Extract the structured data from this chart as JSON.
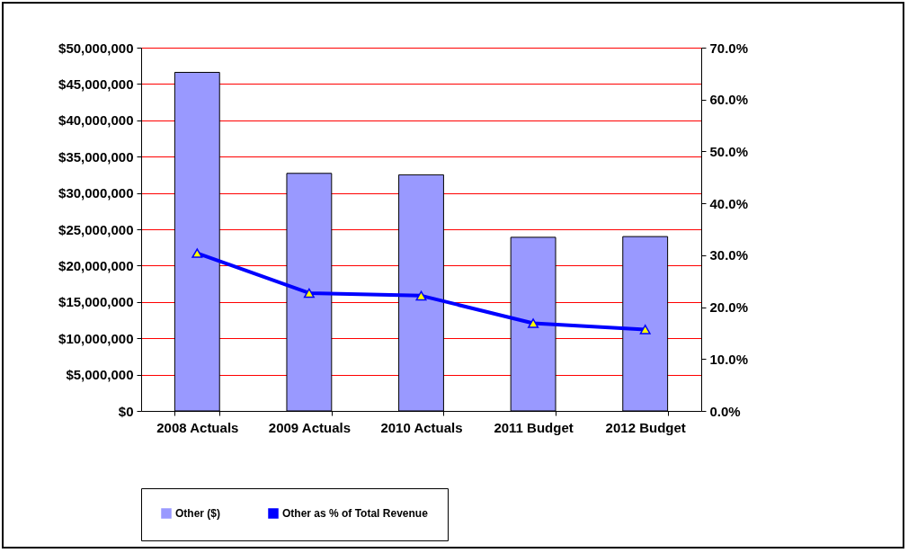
{
  "chart_data": {
    "type": "bar",
    "categories": [
      "2008 Actuals",
      "2009 Actuals",
      "2010 Actuals",
      "2011 Budget",
      "2012 Budget"
    ],
    "series": [
      {
        "name": "Other ($)",
        "color": "#9999ff",
        "values": [
          46600000,
          32700000,
          32500000,
          23900000,
          24000000
        ]
      },
      {
        "name": "Other as % of Total Revenue",
        "type": "line",
        "axis": "y2",
        "color": "#0000ff",
        "values": [
          30.4,
          22.7,
          22.2,
          16.9,
          15.7
        ]
      }
    ],
    "ylim": [
      0,
      50000000
    ],
    "yticks": [
      {
        "value": 0,
        "label": "$0"
      },
      {
        "value": 5000000,
        "label": "$5,000,000"
      },
      {
        "value": 10000000,
        "label": "$10,000,000"
      },
      {
        "value": 15000000,
        "label": "$15,000,000"
      },
      {
        "value": 20000000,
        "label": "$20,000,000"
      },
      {
        "value": 25000000,
        "label": "$25,000,000"
      },
      {
        "value": 30000000,
        "label": "$30,000,000"
      },
      {
        "value": 35000000,
        "label": "$35,000,000"
      },
      {
        "value": 40000000,
        "label": "$40,000,000"
      },
      {
        "value": 45000000,
        "label": "$45,000,000"
      },
      {
        "value": 50000000,
        "label": "$50,000,000"
      }
    ],
    "y2lim": [
      0,
      70
    ],
    "y2ticks": [
      {
        "value": 0,
        "label": "0.0%"
      },
      {
        "value": 10,
        "label": "10.0%"
      },
      {
        "value": 20,
        "label": "20.0%"
      },
      {
        "value": 30,
        "label": "30.0%"
      },
      {
        "value": 40,
        "label": "40.0%"
      },
      {
        "value": 50,
        "label": "50.0%"
      },
      {
        "value": 60,
        "label": "60.0%"
      },
      {
        "value": 70,
        "label": "70.0%"
      }
    ],
    "grid": "y",
    "legend": "bottom",
    "marker": "triangle"
  }
}
